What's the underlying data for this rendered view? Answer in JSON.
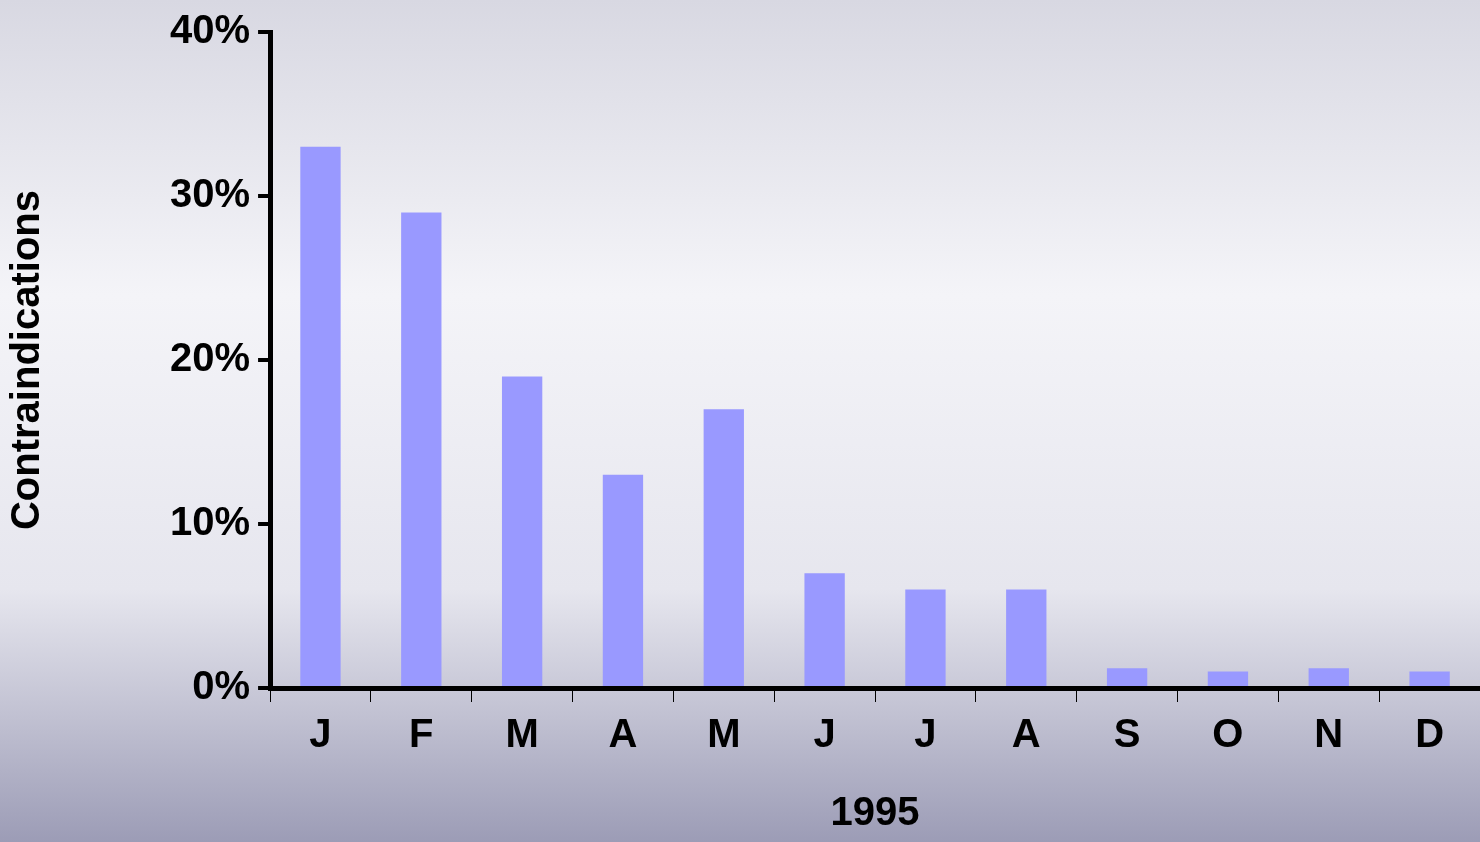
{
  "chart_data": {
    "type": "bar",
    "xlabel": "1995",
    "ylabel": "Contraindications",
    "categories": [
      "J",
      "F",
      "M",
      "A",
      "M",
      "J",
      "J",
      "A",
      "S",
      "O",
      "N",
      "D"
    ],
    "values": [
      33,
      29,
      19,
      13,
      17,
      7,
      6,
      6,
      1.2,
      1,
      1.2,
      1
    ],
    "color": "#9999ff",
    "ylim": [
      0,
      40
    ],
    "yticks": [
      {
        "value": 0,
        "label": "0%"
      },
      {
        "value": 10,
        "label": "10%"
      },
      {
        "value": 20,
        "label": "20%"
      },
      {
        "value": 30,
        "label": "30%"
      },
      {
        "value": 40,
        "label": "40%"
      }
    ],
    "grid": false,
    "legend": false
  }
}
